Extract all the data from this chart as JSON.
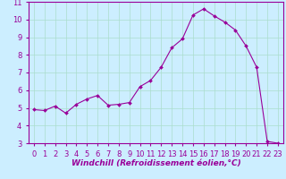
{
  "x": [
    0,
    1,
    2,
    3,
    4,
    5,
    6,
    7,
    8,
    9,
    10,
    11,
    12,
    13,
    14,
    15,
    16,
    17,
    18,
    19,
    20,
    21,
    22,
    23
  ],
  "y": [
    4.9,
    4.85,
    5.1,
    4.7,
    5.2,
    5.5,
    5.7,
    5.15,
    5.2,
    5.3,
    6.2,
    6.55,
    7.3,
    8.4,
    8.9,
    10.25,
    10.6,
    10.2,
    9.85,
    9.4,
    8.5,
    7.3,
    3.1,
    3.0
  ],
  "line_color": "#990099",
  "marker_color": "#990099",
  "bg_color": "#cceeff",
  "grid_color": "#aaddcc",
  "xlabel": "Windchill (Refroidissement éolien,°C)",
  "xlim": [
    -0.5,
    23.5
  ],
  "ylim": [
    3,
    11
  ],
  "yticks": [
    3,
    4,
    5,
    6,
    7,
    8,
    9,
    10,
    11
  ],
  "xticks": [
    0,
    1,
    2,
    3,
    4,
    5,
    6,
    7,
    8,
    9,
    10,
    11,
    12,
    13,
    14,
    15,
    16,
    17,
    18,
    19,
    20,
    21,
    22,
    23
  ],
  "axis_color": "#990099",
  "tick_color": "#990099",
  "font_size_label": 6.5,
  "font_size_tick": 6.0
}
